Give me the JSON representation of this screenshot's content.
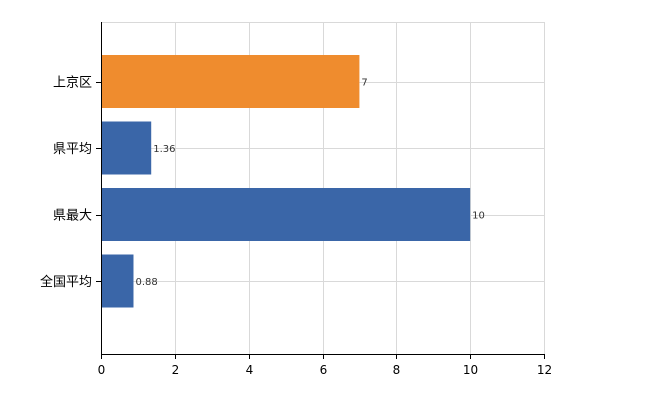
{
  "chart_data": {
    "type": "bar",
    "orientation": "horizontal",
    "categories": [
      "上京区",
      "県平均",
      "県最大",
      "全国平均"
    ],
    "values": [
      7,
      1.36,
      10,
      0.88
    ],
    "value_labels": [
      "7",
      "1.36",
      "10",
      "0.88"
    ],
    "colors": [
      "#ef8c2e",
      "#3a66a8",
      "#3a66a8",
      "#3a66a8"
    ],
    "xlim": [
      0,
      12
    ],
    "xticks": [
      0,
      2,
      4,
      6,
      8,
      10,
      12
    ],
    "xtick_labels": [
      "0",
      "2",
      "4",
      "6",
      "8",
      "10",
      "12"
    ],
    "grid": true,
    "title": "",
    "xlabel": "",
    "ylabel": ""
  }
}
